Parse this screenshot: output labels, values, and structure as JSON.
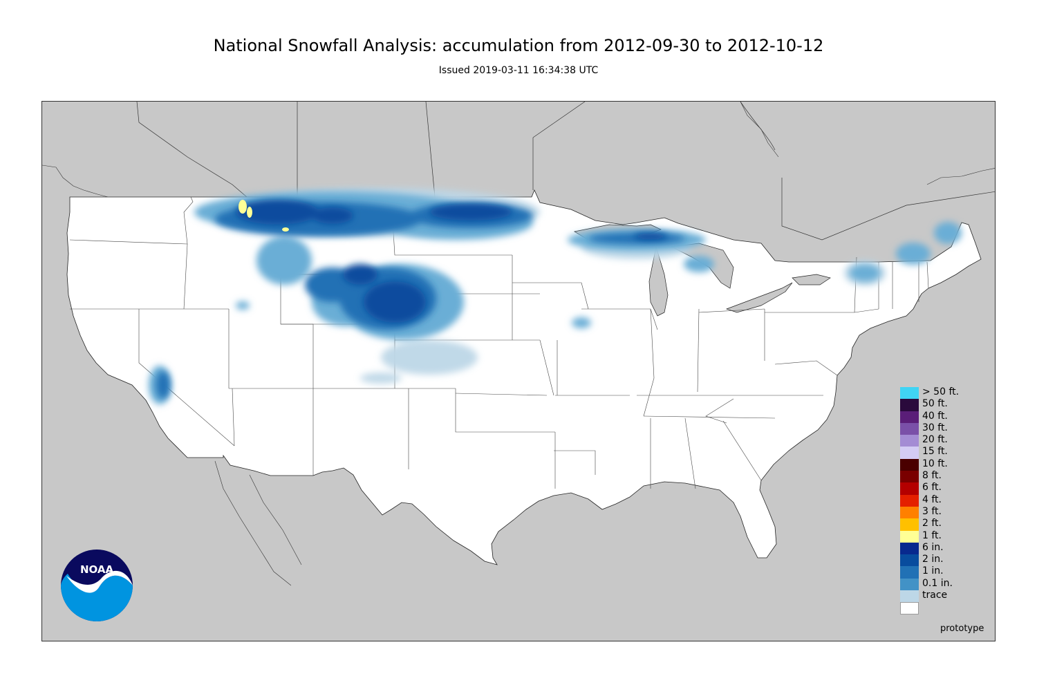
{
  "header": {
    "title": "National Snowfall Analysis: accumulation from 2012-09-30 to 2012-10-12",
    "subtitle": "Issued 2019-03-11 16:34:38 UTC"
  },
  "map": {
    "land_color": "#ffffff",
    "outside_color": "#c8c8c8",
    "border_color": "#555555"
  },
  "legend": {
    "items": [
      {
        "label": "> 50 ft.",
        "color": "#40d4f4"
      },
      {
        "label": "50 ft.",
        "color": "#2a0a3c"
      },
      {
        "label": "40 ft.",
        "color": "#5a1e78"
      },
      {
        "label": "30 ft.",
        "color": "#7a50a8"
      },
      {
        "label": "20 ft.",
        "color": "#a48cd4"
      },
      {
        "label": "15 ft.",
        "color": "#d4ccf4"
      },
      {
        "label": "10 ft.",
        "color": "#4a0000"
      },
      {
        "label": "8 ft.",
        "color": "#7a0000"
      },
      {
        "label": "6 ft.",
        "color": "#b40000"
      },
      {
        "label": "4 ft.",
        "color": "#e42000"
      },
      {
        "label": "3 ft.",
        "color": "#ff8000"
      },
      {
        "label": "2 ft.",
        "color": "#ffc000"
      },
      {
        "label": "1 ft.",
        "color": "#ffff96"
      },
      {
        "label": "6 in.",
        "color": "#08298e"
      },
      {
        "label": "2 in.",
        "color": "#084c9e"
      },
      {
        "label": "1 in.",
        "color": "#2171b5"
      },
      {
        "label": "0.1 in.",
        "color": "#4292c6"
      },
      {
        "label": "trace",
        "color": "#6baed6"
      }
    ],
    "base_color": "#bdd7e7"
  },
  "footer": {
    "note": "prototype",
    "logo_text": "NOAA"
  }
}
